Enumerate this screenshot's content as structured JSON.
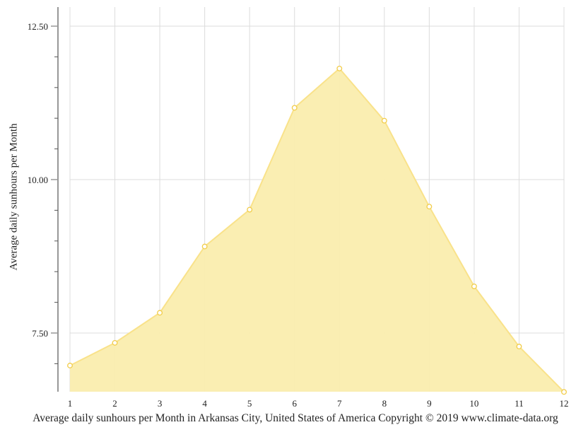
{
  "chart_data": {
    "type": "area",
    "title": "",
    "xlabel": "",
    "ylabel": "Average daily sunhours per Month",
    "caption": "Average daily sunhours per Month in Arkansas City, United States of America Copyright © 2019 www.climate-data.org",
    "categories": [
      "1",
      "2",
      "3",
      "4",
      "5",
      "6",
      "7",
      "8",
      "9",
      "10",
      "11",
      "12"
    ],
    "x": [
      1,
      2,
      3,
      4,
      5,
      6,
      7,
      8,
      9,
      10,
      11,
      12
    ],
    "series": [
      {
        "name": "Average daily sunhours",
        "values": [
          6.97,
          7.34,
          7.83,
          8.91,
          9.51,
          11.17,
          11.81,
          10.96,
          9.56,
          8.26,
          7.28,
          6.54
        ],
        "fill_color": "#faedae",
        "line_color": "#f9e28a",
        "marker_color": "#f2cd4a"
      }
    ],
    "yticks": [
      7.5,
      10.0,
      12.5
    ],
    "ytick_labels": [
      "7.50",
      "10.00",
      "12.50"
    ],
    "ylim": [
      6.54,
      12.81
    ],
    "xlim": [
      1,
      12
    ],
    "grid": true,
    "legend": "none"
  }
}
